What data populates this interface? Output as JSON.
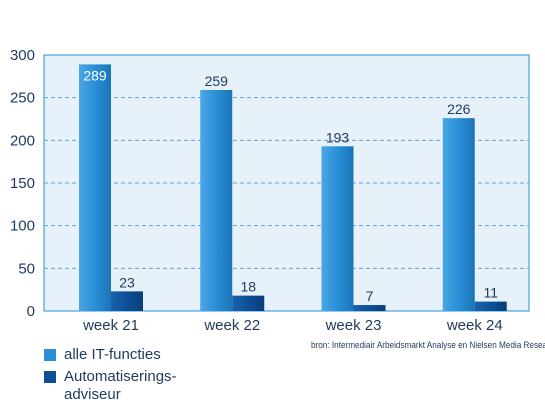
{
  "chart_data": {
    "type": "bar",
    "categories": [
      "week 21",
      "week 22",
      "week 23",
      "week 24"
    ],
    "series": [
      {
        "name": "alle IT-functies",
        "values": [
          289,
          259,
          193,
          226
        ],
        "color": "#2a8fd6"
      },
      {
        "name": "Automatiserings-adviseur",
        "values": [
          23,
          18,
          7,
          11
        ],
        "color": "#0d4f97"
      }
    ],
    "yticks": [
      "0",
      "50",
      "100",
      "150",
      "200",
      "250",
      "300"
    ],
    "ylim": [
      0,
      300
    ],
    "grid": true,
    "legend_position": "bottom-left",
    "plot_background": "#e6f1fa",
    "plot_border": "#2a8fd6",
    "source": "bron: Intermediair Arbeidsmarkt Analyse en Nielsen Media Research"
  },
  "legend": [
    {
      "label": "alle IT-functies",
      "color": "#2a8fd6"
    },
    {
      "label": "Automatiserings-\nadviseur",
      "color": "#0d4f97"
    }
  ]
}
